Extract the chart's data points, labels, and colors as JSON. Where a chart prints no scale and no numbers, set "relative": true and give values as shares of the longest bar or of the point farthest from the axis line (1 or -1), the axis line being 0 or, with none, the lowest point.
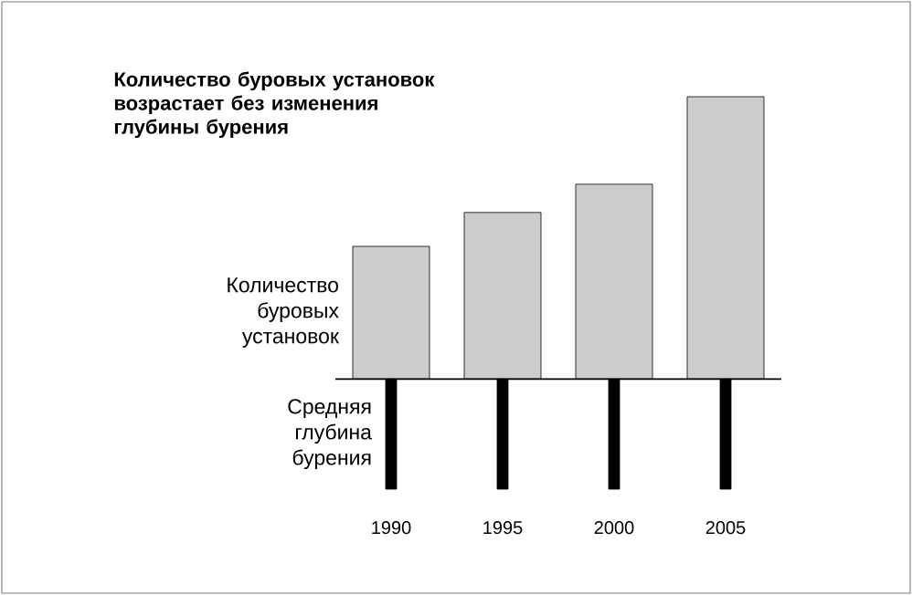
{
  "chart_data": {
    "type": "bar",
    "title": "Количество буровых установок возрастает без изменения глубины бурения",
    "categories": [
      "1990",
      "1995",
      "2000",
      "2005"
    ],
    "relative": true,
    "series": [
      {
        "name": "Количество буровых установок",
        "color": "#cccccc",
        "values": [
          0.47,
          0.59,
          0.69,
          1
        ]
      },
      {
        "name": "Средняя глубина бурения",
        "color": "#000000",
        "values": [
          -0.39,
          -0.39,
          -0.39,
          -0.39
        ]
      }
    ]
  }
}
